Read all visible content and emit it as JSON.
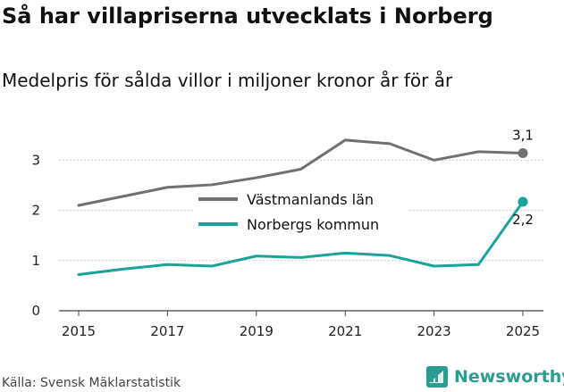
{
  "title": "Så har villapriserna utvecklats i Norberg",
  "subtitle": "Medelpris för sålda villor i miljoner kronor år för år",
  "source": "Källa: Svensk Mäklarstatistik",
  "brand": "Newsworthy",
  "colors": {
    "vastmanland": "#707070",
    "norberg": "#1aa39a",
    "grid": "#cccccc",
    "brand": "#2a9d8f"
  },
  "chart_data": {
    "type": "line",
    "x": [
      2015,
      2016,
      2017,
      2018,
      2019,
      2020,
      2021,
      2022,
      2023,
      2024,
      2025
    ],
    "xticks": [
      "2015",
      "2017",
      "2019",
      "2021",
      "2023",
      "2025"
    ],
    "yticks": [
      "0",
      "1",
      "2",
      "3"
    ],
    "ylim": [
      0,
      3.6
    ],
    "xlim": [
      2015,
      2025
    ],
    "series": [
      {
        "name": "Västmanlands län",
        "values": [
          2.1,
          2.28,
          2.46,
          2.51,
          2.65,
          2.82,
          3.4,
          3.33,
          3.0,
          3.17,
          3.14
        ],
        "end_label": "3,1"
      },
      {
        "name": "Norbergs kommun",
        "values": [
          0.72,
          0.83,
          0.92,
          0.89,
          1.09,
          1.06,
          1.15,
          1.1,
          0.89,
          0.92,
          2.17
        ],
        "end_label": "2,2"
      }
    ],
    "legend": "inside-center"
  }
}
